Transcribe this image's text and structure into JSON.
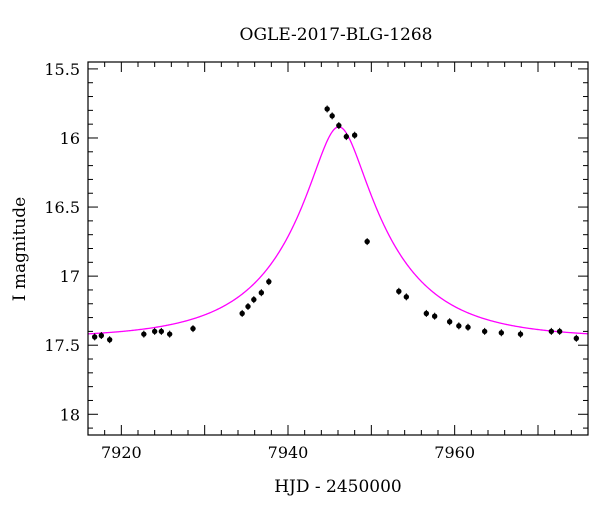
{
  "chart_data": {
    "type": "scatter",
    "title": "OGLE-2017-BLG-1268",
    "xlabel": "HJD - 2450000",
    "ylabel": "I magnitude",
    "xlim": [
      7916,
      7976
    ],
    "ylim": [
      18.15,
      15.45
    ],
    "y_inverted": true,
    "x_ticks": [
      7920,
      7940,
      7960
    ],
    "y_ticks": [
      15.5,
      16,
      16.5,
      17,
      17.5,
      18
    ],
    "y_tick_labels": [
      "15.5",
      "16",
      "16.5",
      "17",
      "17.5",
      "18"
    ],
    "grid": false,
    "colors": {
      "model": "#ff00ff",
      "points": "#000000"
    },
    "series": [
      {
        "kind": "points",
        "x": [
          7916.8,
          7917.6,
          7918.6,
          7922.7,
          7924.0,
          7924.8,
          7925.8,
          7928.6,
          7934.5,
          7935.2,
          7935.9,
          7936.8,
          7937.7,
          7944.7,
          7945.3,
          7946.1,
          7947.0,
          7948.0,
          7949.5,
          7953.3,
          7954.2,
          7956.6,
          7957.6,
          7959.4,
          7960.5,
          7961.6,
          7963.6,
          7965.6,
          7967.9,
          7971.6,
          7972.6,
          7974.6
        ],
        "y": [
          17.44,
          17.43,
          17.46,
          17.42,
          17.4,
          17.4,
          17.42,
          17.38,
          17.27,
          17.22,
          17.17,
          17.12,
          17.04,
          15.79,
          15.84,
          15.91,
          15.99,
          15.98,
          16.75,
          17.11,
          17.15,
          17.27,
          17.29,
          17.33,
          17.36,
          17.37,
          17.4,
          17.41,
          17.42,
          17.4,
          17.4,
          17.45
        ]
      },
      {
        "kind": "model",
        "model": "pspl",
        "t0": 7946.1,
        "tE": 12.0,
        "u0": 0.25,
        "base_mag": 17.45
      }
    ]
  }
}
